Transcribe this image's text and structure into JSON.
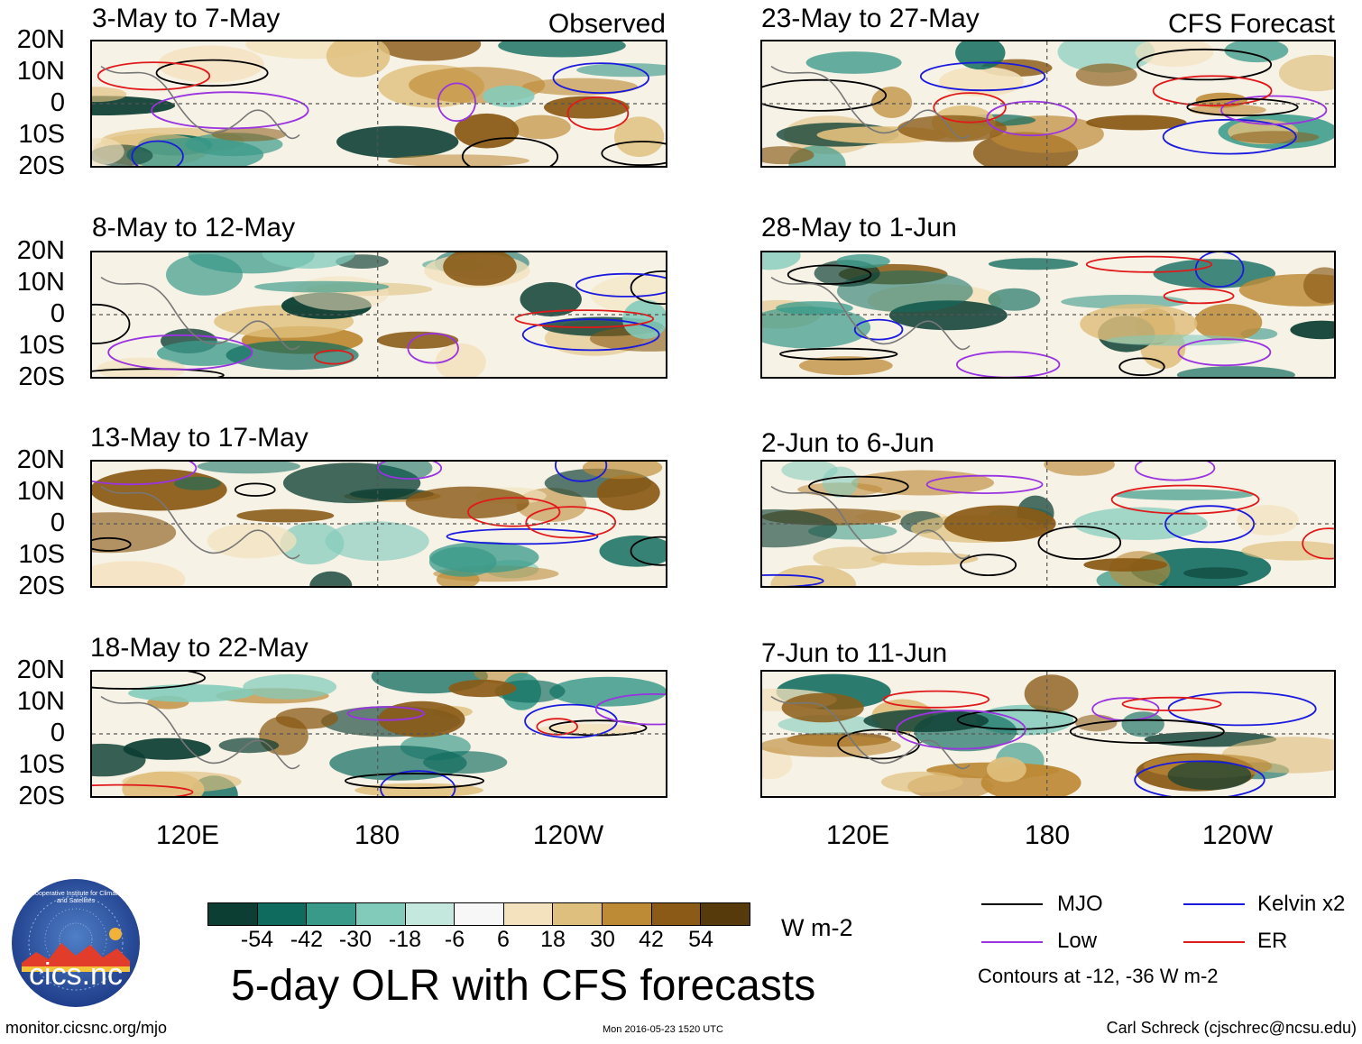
{
  "panels_left": [
    {
      "title": "3-May to 7-May",
      "tag": "Observed"
    },
    {
      "title": "8-May to 12-May",
      "tag": ""
    },
    {
      "title": "13-May to 17-May",
      "tag": ""
    },
    {
      "title": "18-May to 22-May",
      "tag": ""
    }
  ],
  "panels_right": [
    {
      "title": "23-May to 27-May",
      "tag": "CFS Forecast"
    },
    {
      "title": "28-May to 1-Jun",
      "tag": ""
    },
    {
      "title": "2-Jun to 6-Jun",
      "tag": ""
    },
    {
      "title": "7-Jun to 11-Jun",
      "tag": ""
    }
  ],
  "lat_labels": [
    "20N",
    "10N",
    "0",
    "10S",
    "20S"
  ],
  "lon_labels": [
    "120E",
    "180",
    "120W"
  ],
  "colorbar": {
    "colors": [
      "#0c3e33",
      "#0f6b5e",
      "#3a9a8a",
      "#82cbbb",
      "#c4e8de",
      "#f7f7f7",
      "#f3e2bd",
      "#dfbf7d",
      "#bd8a36",
      "#8a5a16",
      "#573a0c"
    ],
    "ticks": [
      "-54",
      "-42",
      "-30",
      "-18",
      "-6",
      "6",
      "18",
      "30",
      "42",
      "54"
    ],
    "units": "W m-2"
  },
  "main_title": "5-day OLR with CFS forecasts",
  "legend": {
    "items": [
      {
        "label": "MJO",
        "color": "#000000"
      },
      {
        "label": "Kelvin x2",
        "color": "#1a1adf"
      },
      {
        "label": "Low",
        "color": "#9a33e0"
      },
      {
        "label": "ER",
        "color": "#e01a1a"
      }
    ],
    "note": "Contours at -12, -36 W m-2"
  },
  "logo_text": "cics.nc",
  "logo_ring": "Cooperative Institute for Climate and Satellites",
  "footer": {
    "left": "monitor.cicsnc.org/mjo",
    "center": "Mon 2016-05-23 1520 UTC",
    "right": "Carl Schreck (cjschrec@ncsu.edu)"
  }
}
